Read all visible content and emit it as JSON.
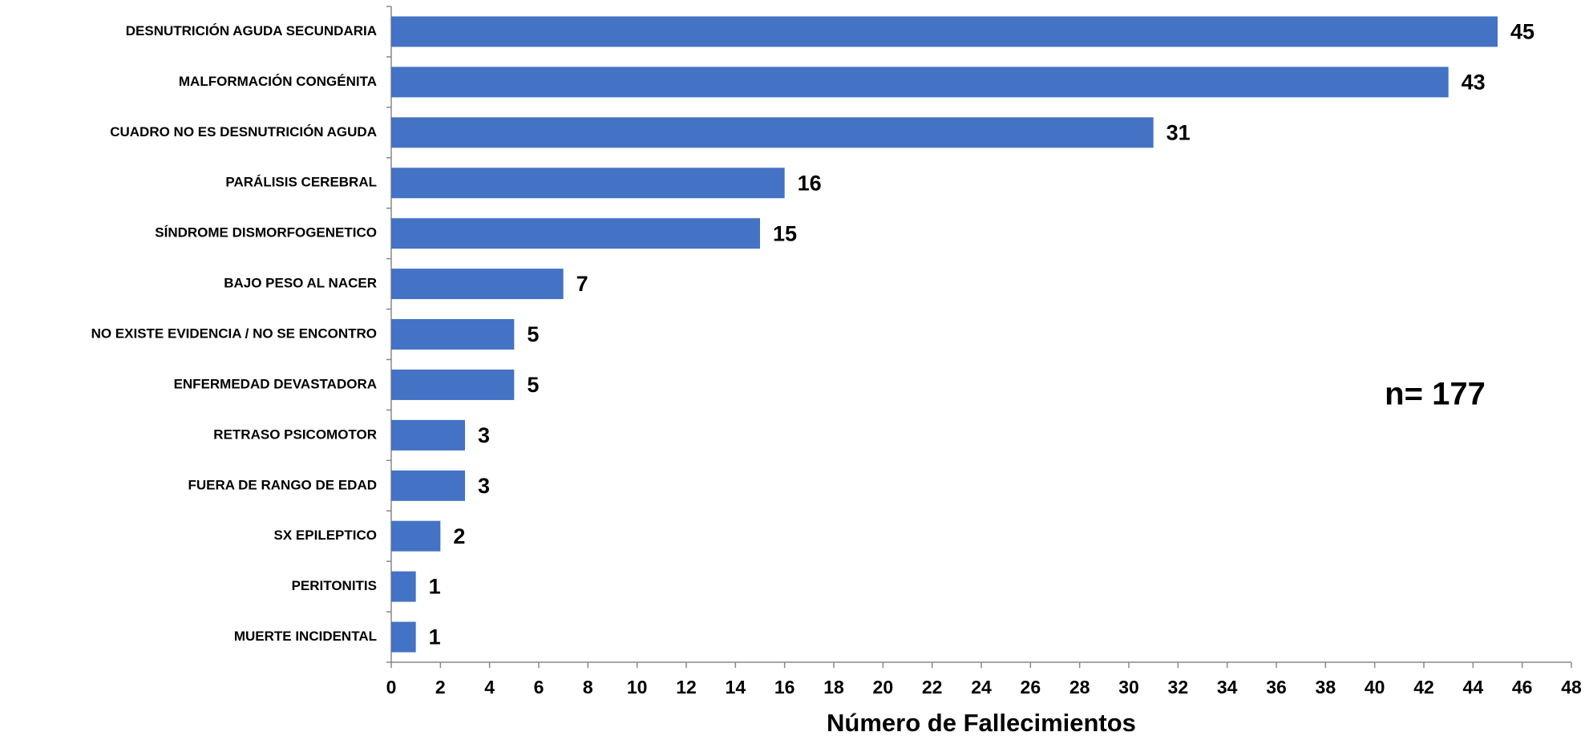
{
  "chart_data": {
    "type": "barh",
    "categories": [
      "DESNUTRICIÓN AGUDA SECUNDARIA",
      "MALFORMACIÓN CONGÉNITA",
      "CUADRO NO ES DESNUTRICIÓN AGUDA",
      "PARÁLISIS CEREBRAL",
      "SÍNDROME DISMORFOGENETICO",
      "BAJO PESO AL NACER",
      "NO EXISTE EVIDENCIA / NO SE ENCONTRO",
      "ENFERMEDAD DEVASTADORA",
      "RETRASO PSICOMOTOR",
      "FUERA DE RANGO DE EDAD",
      "SX EPILEPTICO",
      "PERITONITIS",
      "MUERTE INCIDENTAL"
    ],
    "values": [
      45,
      43,
      31,
      16,
      15,
      7,
      5,
      5,
      3,
      3,
      2,
      1,
      1
    ],
    "color": "#4472c4",
    "xlabel": "Número de Fallecimientos",
    "annotation": "n= 177",
    "xlim": [
      0,
      48
    ],
    "xticks": [
      0,
      2,
      4,
      6,
      8,
      10,
      12,
      14,
      16,
      18,
      20,
      22,
      24,
      26,
      28,
      30,
      32,
      34,
      36,
      38,
      40,
      42,
      44,
      46,
      48
    ],
    "grid": false
  }
}
